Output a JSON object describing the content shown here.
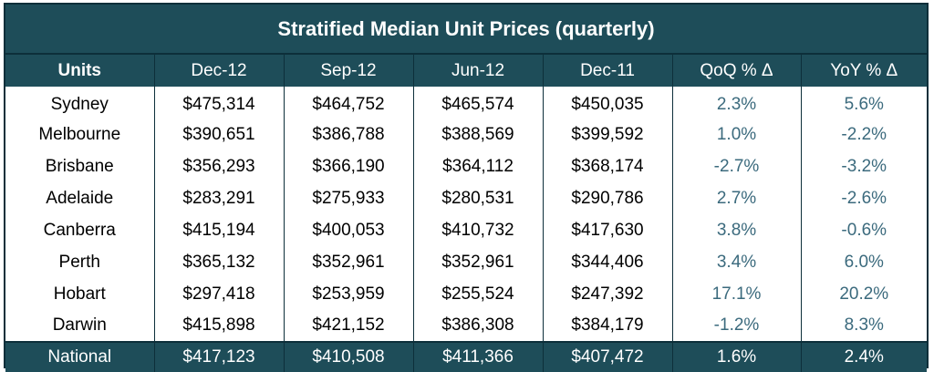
{
  "title": "Stratified Median Unit Prices (quarterly)",
  "headers": [
    "Units",
    "Dec-12",
    "Sep-12",
    "Jun-12",
    "Dec-11",
    "QoQ % Δ",
    "YoY % Δ"
  ],
  "rows": [
    [
      "Sydney",
      "$475,314",
      "$464,752",
      "$465,574",
      "$450,035",
      "2.3%",
      "5.6%"
    ],
    [
      "Melbourne",
      "$390,651",
      "$386,788",
      "$388,569",
      "$399,592",
      "1.0%",
      "-2.2%"
    ],
    [
      "Brisbane",
      "$356,293",
      "$366,190",
      "$364,112",
      "$368,174",
      "-2.7%",
      "-3.2%"
    ],
    [
      "Adelaide",
      "$283,291",
      "$275,933",
      "$280,531",
      "$290,786",
      "2.7%",
      "-2.6%"
    ],
    [
      "Canberra",
      "$415,194",
      "$400,053",
      "$410,732",
      "$417,630",
      "3.8%",
      "-0.6%"
    ],
    [
      "Perth",
      "$365,132",
      "$352,961",
      "$352,961",
      "$344,406",
      "3.4%",
      "6.0%"
    ],
    [
      "Hobart",
      "$297,418",
      "$253,959",
      "$255,524",
      "$247,392",
      "17.1%",
      "20.2%"
    ],
    [
      "Darwin",
      "$415,898",
      "$421,152",
      "$386,308",
      "$384,179",
      "-1.2%",
      "8.3%"
    ]
  ],
  "footer": [
    "National",
    "$417,123",
    "$410,508",
    "$411,366",
    "$407,472",
    "1.6%",
    "2.4%"
  ],
  "colors": {
    "header_bg": "#1e4d59",
    "border": "#0d2f3a",
    "pct_text": "#3b6a7d"
  }
}
